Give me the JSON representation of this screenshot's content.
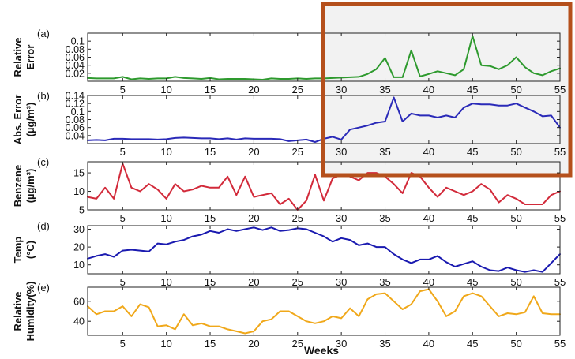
{
  "colors": {
    "highlight_border": "#b5501c",
    "highlight_fill": "#e8e8e8"
  },
  "chart_data": [
    {
      "type": "line",
      "panel_label": "(a)",
      "ylabel": [
        "Relative",
        "Error"
      ],
      "ylim": [
        0,
        0.12
      ],
      "yticks": [
        0.02,
        0.04,
        0.06,
        0.08,
        0.1
      ],
      "ytick_labels": [
        "0.02",
        "0.04",
        "0.06",
        "0.08",
        "0.1"
      ],
      "xlim": [
        1,
        55
      ],
      "xticks": [
        5,
        10,
        15,
        20,
        25,
        30,
        35,
        40,
        45,
        50,
        55
      ],
      "xtick_labels": [
        "5",
        "10",
        "15",
        "20",
        "25",
        "30",
        "35",
        "40",
        "45",
        "50",
        "55"
      ],
      "color": "#2e9a2e",
      "x": [
        1,
        2,
        3,
        4,
        5,
        6,
        7,
        8,
        9,
        10,
        11,
        12,
        13,
        14,
        15,
        16,
        17,
        18,
        19,
        20,
        21,
        22,
        23,
        24,
        25,
        26,
        27,
        28,
        29,
        30,
        31,
        32,
        33,
        34,
        35,
        36,
        37,
        38,
        39,
        40,
        41,
        42,
        43,
        44,
        45,
        46,
        47,
        48,
        49,
        50,
        51,
        52,
        53,
        54,
        55
      ],
      "y": [
        0.008,
        0.007,
        0.007,
        0.007,
        0.011,
        0.005,
        0.007,
        0.006,
        0.007,
        0.007,
        0.011,
        0.008,
        0.007,
        0.006,
        0.008,
        0.005,
        0.006,
        0.006,
        0.006,
        0.005,
        0.004,
        0.007,
        0.006,
        0.006,
        0.007,
        0.006,
        0.007,
        0.007,
        0.008,
        0.009,
        0.01,
        0.011,
        0.018,
        0.03,
        0.058,
        0.01,
        0.01,
        0.077,
        0.012,
        0.018,
        0.025,
        0.02,
        0.015,
        0.03,
        0.113,
        0.04,
        0.038,
        0.03,
        0.04,
        0.06,
        0.035,
        0.02,
        0.015,
        0.025,
        0.032
      ]
    },
    {
      "type": "line",
      "panel_label": "(b)",
      "ylabel": [
        "Abs. Error",
        "(µg/m³)"
      ],
      "ylim": [
        0.02,
        0.14
      ],
      "yticks": [
        0.04,
        0.06,
        0.08,
        0.1,
        0.12,
        0.14
      ],
      "ytick_labels": [
        "0.04",
        "0.06",
        "0.08",
        "0.1",
        "0.12",
        "0.14"
      ],
      "xlim": [
        1,
        55
      ],
      "xticks": [
        5,
        10,
        15,
        20,
        25,
        30,
        35,
        40,
        45,
        50,
        55
      ],
      "xtick_labels": [
        "5",
        "10",
        "15",
        "20",
        "25",
        "30",
        "35",
        "40",
        "45",
        "50",
        "55"
      ],
      "color": "#2a2ab8",
      "x": [
        1,
        2,
        3,
        4,
        5,
        6,
        7,
        8,
        9,
        10,
        11,
        12,
        13,
        14,
        15,
        16,
        17,
        18,
        19,
        20,
        21,
        22,
        23,
        24,
        25,
        26,
        27,
        28,
        29,
        30,
        31,
        32,
        33,
        34,
        35,
        36,
        37,
        38,
        39,
        40,
        41,
        42,
        43,
        44,
        45,
        46,
        47,
        48,
        49,
        50,
        51,
        52,
        53,
        54,
        55
      ],
      "y": [
        0.028,
        0.029,
        0.028,
        0.032,
        0.032,
        0.031,
        0.031,
        0.031,
        0.03,
        0.031,
        0.034,
        0.035,
        0.034,
        0.033,
        0.033,
        0.031,
        0.033,
        0.03,
        0.033,
        0.032,
        0.032,
        0.032,
        0.031,
        0.026,
        0.028,
        0.03,
        0.024,
        0.032,
        0.037,
        0.03,
        0.055,
        0.06,
        0.065,
        0.072,
        0.075,
        0.135,
        0.075,
        0.095,
        0.09,
        0.09,
        0.085,
        0.09,
        0.085,
        0.11,
        0.12,
        0.118,
        0.118,
        0.115,
        0.115,
        0.12,
        0.11,
        0.1,
        0.088,
        0.09,
        0.06
      ]
    },
    {
      "type": "line",
      "panel_label": "(c)",
      "ylabel": [
        "Benzene",
        "(µg/m³)"
      ],
      "ylim": [
        5,
        18
      ],
      "yticks": [
        5,
        10,
        15
      ],
      "ytick_labels": [
        "5",
        "10",
        "15"
      ],
      "xlim": [
        1,
        55
      ],
      "xticks": [
        5,
        10,
        15,
        20,
        25,
        30,
        35,
        40,
        45,
        50,
        55
      ],
      "xtick_labels": [
        "5",
        "10",
        "15",
        "20",
        "25",
        "30",
        "35",
        "40",
        "45",
        "50",
        "55"
      ],
      "color": "#d22a3a",
      "x": [
        1,
        2,
        3,
        4,
        5,
        6,
        7,
        8,
        9,
        10,
        11,
        12,
        13,
        14,
        15,
        16,
        17,
        18,
        19,
        20,
        21,
        22,
        23,
        24,
        25,
        26,
        27,
        28,
        29,
        30,
        31,
        32,
        33,
        34,
        35,
        36,
        37,
        38,
        39,
        40,
        41,
        42,
        43,
        44,
        45,
        46,
        47,
        48,
        49,
        50,
        51,
        52,
        53,
        54,
        55
      ],
      "y": [
        8.5,
        8,
        11,
        8,
        17.5,
        11,
        10,
        12,
        10.5,
        8,
        12,
        10,
        10.5,
        11.5,
        11,
        11,
        14,
        9,
        14,
        8.5,
        9,
        9.5,
        6.5,
        8,
        5,
        7.5,
        14.5,
        7.5,
        13.5,
        14.5,
        14,
        13,
        15,
        15,
        14,
        12,
        9.5,
        15,
        14,
        11,
        8.5,
        11,
        10,
        9,
        10,
        12,
        10.5,
        7,
        9,
        8,
        6.5,
        6.5,
        6.5,
        9,
        10
      ]
    },
    {
      "type": "line",
      "panel_label": "(d)",
      "ylabel": [
        "Temp",
        "(°C)"
      ],
      "ylim": [
        5,
        32
      ],
      "yticks": [
        10,
        20,
        30
      ],
      "ytick_labels": [
        "10",
        "20",
        "30"
      ],
      "xlim": [
        1,
        55
      ],
      "xticks": [
        5,
        10,
        15,
        20,
        25,
        30,
        35,
        40,
        45,
        50,
        55
      ],
      "xtick_labels": [
        "5",
        "10",
        "15",
        "20",
        "25",
        "30",
        "35",
        "40",
        "45",
        "50",
        "55"
      ],
      "color": "#1a1ab0",
      "x": [
        1,
        2,
        3,
        4,
        5,
        6,
        7,
        8,
        9,
        10,
        11,
        12,
        13,
        14,
        15,
        16,
        17,
        18,
        19,
        20,
        21,
        22,
        23,
        24,
        25,
        26,
        27,
        28,
        29,
        30,
        31,
        32,
        33,
        34,
        35,
        36,
        37,
        38,
        39,
        40,
        41,
        42,
        43,
        44,
        45,
        46,
        47,
        48,
        49,
        50,
        51,
        52,
        53,
        54,
        55
      ],
      "y": [
        13.5,
        15,
        16,
        14.5,
        18,
        18.5,
        18,
        17.5,
        22,
        21.5,
        23,
        24,
        26,
        27,
        29,
        28,
        30,
        29,
        30,
        31,
        29.5,
        31,
        29,
        29.5,
        30.5,
        30,
        28,
        26,
        23,
        25,
        24,
        21,
        22,
        20,
        20,
        16,
        13,
        11,
        13,
        13,
        15,
        11.5,
        9,
        10.5,
        12,
        9,
        7,
        6.5,
        8.5,
        7,
        6,
        7,
        6,
        11,
        16
      ]
    },
    {
      "type": "line",
      "panel_label": "(e)",
      "ylabel": [
        "Relative",
        "Humidity(%)"
      ],
      "ylim": [
        26,
        74
      ],
      "yticks": [
        40,
        60
      ],
      "ytick_labels": [
        "40",
        "60"
      ],
      "xlim": [
        1,
        55
      ],
      "xticks": [
        5,
        10,
        15,
        20,
        25,
        30,
        35,
        40,
        45,
        50,
        55
      ],
      "xtick_labels": [
        "5",
        "10",
        "15",
        "20",
        "25",
        "30",
        "35",
        "40",
        "45",
        "50",
        "55"
      ],
      "color": "#f0a81a",
      "x": [
        1,
        2,
        3,
        4,
        5,
        6,
        7,
        8,
        9,
        10,
        11,
        12,
        13,
        14,
        15,
        16,
        17,
        18,
        19,
        20,
        21,
        22,
        23,
        24,
        25,
        26,
        27,
        28,
        29,
        30,
        31,
        32,
        33,
        34,
        35,
        36,
        37,
        38,
        39,
        40,
        41,
        42,
        43,
        44,
        45,
        46,
        47,
        48,
        49,
        50,
        51,
        52,
        53,
        54,
        55
      ],
      "y": [
        55,
        47,
        50,
        50,
        55,
        45,
        57,
        54,
        35,
        36,
        32,
        47,
        36,
        38,
        35,
        35,
        32,
        30,
        28,
        30,
        40,
        42,
        50,
        50,
        45,
        40,
        38,
        40,
        45,
        43,
        53,
        45,
        62,
        67,
        68,
        60,
        52,
        57,
        70,
        72,
        60,
        45,
        50,
        65,
        68,
        65,
        55,
        45,
        48,
        47,
        49,
        65,
        48,
        47,
        47
      ]
    }
  ],
  "xlabel": "Weeks"
}
